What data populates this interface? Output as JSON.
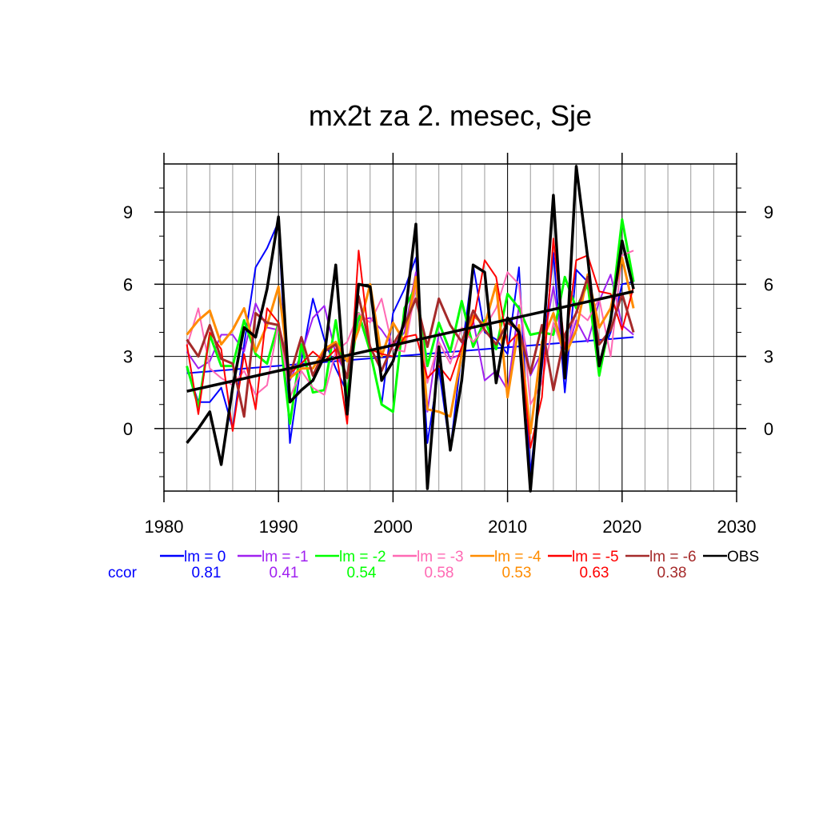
{
  "chart_data": {
    "type": "line",
    "title": "mx2t za 2. mesec, Sje",
    "xlabel": "",
    "ylabel": "",
    "xlim": [
      1980,
      2030
    ],
    "ylim": [
      -2.6,
      11.0
    ],
    "xticks": [
      1980,
      1990,
      2000,
      2010,
      2020,
      2030
    ],
    "yticks": [
      0,
      3,
      6,
      9
    ],
    "grid": true,
    "legend_placement": "bottom",
    "ccor_label": "ccor",
    "x": [
      1982,
      1983,
      1984,
      1985,
      1986,
      1987,
      1988,
      1989,
      1990,
      1991,
      1992,
      1993,
      1994,
      1995,
      1996,
      1997,
      1998,
      1999,
      2000,
      2001,
      2002,
      2003,
      2004,
      2005,
      2006,
      2007,
      2008,
      2009,
      2010,
      2011,
      2012,
      2013,
      2014,
      2015,
      2016,
      2017,
      2018,
      2019,
      2020,
      2021
    ],
    "series": [
      {
        "name": "lm = 0",
        "color": "#0000ff",
        "width": 2,
        "ccor": "0.81",
        "values": [
          2.5,
          1.1,
          1.1,
          1.7,
          0.0,
          3.5,
          6.7,
          7.5,
          8.6,
          -0.6,
          2.8,
          5.4,
          3.7,
          2.5,
          1.5,
          4.7,
          3.2,
          1.0,
          4.8,
          5.8,
          7.1,
          -0.6,
          2.5,
          -0.9,
          3.2,
          6.8,
          4.0,
          3.7,
          3.1,
          6.7,
          -1.9,
          2.5,
          7.3,
          1.5,
          6.6,
          6.1,
          2.8,
          4.0,
          6.0,
          6.1
        ],
        "trend": [
          2.3,
          3.8
        ]
      },
      {
        "name": "lm = -1",
        "color": "#a020f0",
        "width": 2,
        "ccor": "0.41",
        "values": [
          3.2,
          2.5,
          2.8,
          3.9,
          3.9,
          3.2,
          5.2,
          4.2,
          4.1,
          2.0,
          3.1,
          4.6,
          5.1,
          3.1,
          2.2,
          4.5,
          4.6,
          4.1,
          3.4,
          4.0,
          6.5,
          0.7,
          4.0,
          2.9,
          3.1,
          4.5,
          2.0,
          2.4,
          1.6,
          5.1,
          2.2,
          3.2,
          5.9,
          2.9,
          4.5,
          3.6,
          5.3,
          6.4,
          4.3,
          3.9
        ]
      },
      {
        "name": "lm = -2",
        "color": "#00ff00",
        "width": 3,
        "ccor": "0.54",
        "values": [
          2.6,
          0.9,
          3.9,
          2.6,
          2.6,
          4.5,
          3.1,
          2.7,
          4.4,
          0.2,
          3.5,
          1.5,
          1.6,
          4.5,
          1.4,
          4.8,
          3.2,
          1.0,
          0.7,
          5.0,
          5.9,
          2.6,
          4.4,
          3.2,
          5.3,
          3.4,
          4.5,
          3.3,
          5.6,
          5.0,
          3.9,
          4.0,
          3.9,
          6.3,
          5.0,
          6.0,
          2.2,
          4.6,
          8.7,
          6.1
        ]
      },
      {
        "name": "lm = -3",
        "color": "#ff69b4",
        "width": 2,
        "ccor": "0.58",
        "values": [
          3.4,
          5.0,
          2.5,
          2.1,
          1.8,
          2.4,
          1.4,
          1.8,
          4.4,
          1.3,
          2.4,
          1.7,
          1.4,
          3.2,
          3.6,
          4.8,
          4.4,
          5.4,
          3.3,
          3.2,
          5.9,
          1.9,
          3.6,
          2.7,
          4.2,
          3.6,
          4.2,
          5.0,
          6.5,
          6.0,
          1.0,
          1.9,
          4.4,
          3.0,
          4.9,
          4.5,
          5.4,
          3.0,
          7.2,
          7.4
        ]
      },
      {
        "name": "lm = -4",
        "color": "#ff8c00",
        "width": 3,
        "ccor": "0.53",
        "values": [
          3.9,
          4.5,
          4.9,
          3.5,
          4.1,
          5.0,
          3.2,
          4.3,
          5.9,
          2.1,
          2.5,
          2.5,
          3.3,
          3.6,
          2.8,
          4.1,
          6.0,
          3.0,
          4.4,
          3.6,
          6.3,
          0.8,
          0.7,
          0.5,
          3.1,
          4.7,
          4.3,
          6.0,
          1.3,
          4.3,
          -0.2,
          3.6,
          4.8,
          3.0,
          4.1,
          6.4,
          4.2,
          5.0,
          7.1,
          5.0
        ]
      },
      {
        "name": "lm = -5",
        "color": "#ff0000",
        "width": 2,
        "ccor": "0.63",
        "values": [
          3.5,
          0.6,
          4.0,
          3.3,
          -0.1,
          3.1,
          0.8,
          5.0,
          4.4,
          2.3,
          2.7,
          3.2,
          2.8,
          3.3,
          0.2,
          7.4,
          3.3,
          3.1,
          3.0,
          3.8,
          3.9,
          2.1,
          2.6,
          2.0,
          3.4,
          4.4,
          7.0,
          6.3,
          3.5,
          4.0,
          -0.8,
          1.3,
          7.9,
          3.3,
          7.0,
          7.2,
          5.7,
          5.6,
          4.1,
          5.9
        ]
      },
      {
        "name": "lm = -6",
        "color": "#a52a2a",
        "width": 3,
        "ccor": "0.38",
        "values": [
          3.7,
          3.0,
          4.3,
          2.9,
          2.7,
          0.5,
          4.8,
          4.4,
          4.3,
          2.2,
          3.8,
          2.2,
          3.2,
          3.5,
          2.1,
          5.5,
          3.4,
          2.4,
          3.5,
          4.3,
          5.4,
          3.4,
          5.4,
          4.3,
          3.6,
          4.9,
          4.1,
          3.5,
          4.4,
          4.1,
          2.3,
          4.3,
          1.6,
          3.9,
          4.8,
          6.3,
          3.5,
          4.1,
          5.6,
          4.0
        ]
      },
      {
        "name": "OBS",
        "color": "#000000",
        "width": 3.5,
        "values": [
          -0.6,
          0.0,
          0.7,
          -1.5,
          1.7,
          4.2,
          3.8,
          5.8,
          8.8,
          1.1,
          1.6,
          2.0,
          3.0,
          6.8,
          0.6,
          6.0,
          5.9,
          2.0,
          2.8,
          4.5,
          8.5,
          -2.5,
          3.4,
          -0.9,
          2.0,
          6.8,
          6.5,
          1.9,
          4.6,
          4.0,
          -2.6,
          3.0,
          9.7,
          2.1,
          10.9,
          7.1,
          2.6,
          4.5,
          7.8,
          5.8
        ],
        "trend": [
          1.55,
          5.7
        ]
      }
    ]
  }
}
